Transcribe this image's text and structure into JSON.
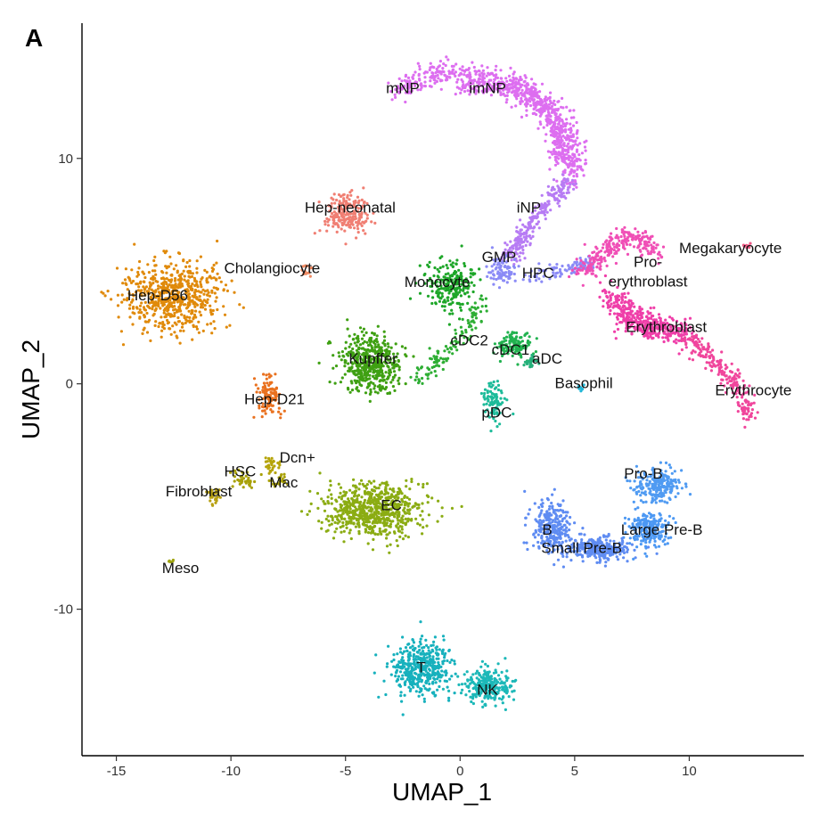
{
  "panel_label": "A",
  "chart_data": {
    "type": "scatter",
    "xlabel": "UMAP_1",
    "ylabel": "UMAP_2",
    "xlim": [
      -16.5,
      15
    ],
    "ylim": [
      -16.5,
      16
    ],
    "x_ticks": [
      {
        "value": -15,
        "label": "-15"
      },
      {
        "value": -10,
        "label": "-10"
      },
      {
        "value": -5,
        "label": "-5"
      },
      {
        "value": 0,
        "label": "0"
      },
      {
        "value": 5,
        "label": "5"
      },
      {
        "value": 10,
        "label": "10"
      }
    ],
    "y_ticks": [
      {
        "value": -10,
        "label": "-10"
      },
      {
        "value": 0,
        "label": "0"
      },
      {
        "value": 10,
        "label": "10"
      }
    ],
    "grid": false,
    "legend": "none",
    "clusters": [
      {
        "label": "mNP",
        "color": "#dd6ef0",
        "x": -2.5,
        "y": 12.9
      },
      {
        "label": "imNP",
        "color": "#dd6ef0",
        "x": 1.2,
        "y": 12.9
      },
      {
        "label": "iNP",
        "color": "#b77cf4",
        "x": 3.0,
        "y": 7.6
      },
      {
        "label": "GMP",
        "color": "#8b8bf6",
        "x": 1.7,
        "y": 5.4
      },
      {
        "label": "HPC",
        "color": "#8b8bf6",
        "x": 3.4,
        "y": 4.7
      },
      {
        "label": "Monocyte",
        "color": "#1da628",
        "x": -1.0,
        "y": 4.3
      },
      {
        "label": "cDC2",
        "color": "#2eae34",
        "x": 0.4,
        "y": 1.7
      },
      {
        "label": "cDC1",
        "color": "#21b24f",
        "x": 2.2,
        "y": 1.3
      },
      {
        "label": "aDC",
        "color": "#25b07a",
        "x": 3.8,
        "y": 0.9
      },
      {
        "label": "pDC",
        "color": "#1dbb9a",
        "x": 1.6,
        "y": -1.5
      },
      {
        "label": "Basophil",
        "color": "#1fb6d7",
        "x": 5.4,
        "y": -0.2
      },
      {
        "label": "Kupffer",
        "color": "#3fa013",
        "x": -3.8,
        "y": 0.9
      },
      {
        "label": "Hep-neonatal",
        "color": "#f07f73",
        "x": -4.8,
        "y": 7.6
      },
      {
        "label": "Cholangiocyte",
        "color": "#ef8a62",
        "x": -8.2,
        "y": 4.9
      },
      {
        "label": "Hep-D56",
        "color": "#e08a0b",
        "x": -13.2,
        "y": 3.7
      },
      {
        "label": "Hep-D21",
        "color": "#e9711f",
        "x": -8.1,
        "y": -0.9
      },
      {
        "label": "Dcn+",
        "color": "#b5a40a",
        "x": -7.1,
        "y": -3.5
      },
      {
        "label": "HSC",
        "color": "#a9a109",
        "x": -9.6,
        "y": -4.1
      },
      {
        "label": "Mac",
        "color": "#a9a109",
        "x": -7.7,
        "y": -4.6
      },
      {
        "label": "Fibroblast",
        "color": "#b7a012",
        "x": -11.4,
        "y": -5.0
      },
      {
        "label": "EC",
        "color": "#8bac13",
        "x": -3.0,
        "y": -5.6
      },
      {
        "label": "Meso",
        "color": "#9fa40e",
        "x": -12.2,
        "y": -8.4
      },
      {
        "label": "Pro-erythroblast",
        "color": "#f04fb6",
        "x": 8.2,
        "y": 4.8
      },
      {
        "label": "Megakaryocyte",
        "color": "#ef5a86",
        "x": 11.8,
        "y": 5.8
      },
      {
        "label": "Erythroblast",
        "color": "#ef3fa9",
        "x": 9.0,
        "y": 2.3
      },
      {
        "label": "Erythrocyte",
        "color": "#f0469c",
        "x": 12.8,
        "y": -0.5
      },
      {
        "label": "Pro-B",
        "color": "#509bf2",
        "x": 8.0,
        "y": -4.2
      },
      {
        "label": "B",
        "color": "#5f8cf2",
        "x": 3.8,
        "y": -6.7
      },
      {
        "label": "Large Pre-B",
        "color": "#4c98f3",
        "x": 8.8,
        "y": -6.7
      },
      {
        "label": "Small Pre-B",
        "color": "#5f8cf2",
        "x": 5.3,
        "y": -7.5
      },
      {
        "label": "T",
        "color": "#17b1bd",
        "x": -1.7,
        "y": -12.8
      },
      {
        "label": "NK",
        "color": "#1cb8b8",
        "x": 1.2,
        "y": -13.8
      }
    ]
  }
}
